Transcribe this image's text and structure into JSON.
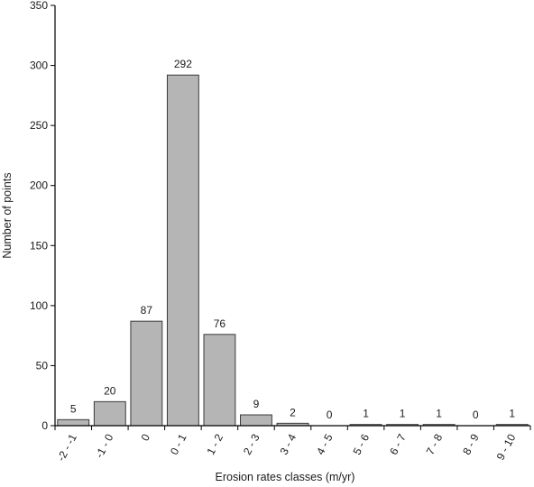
{
  "chart_data": {
    "type": "bar",
    "title": "",
    "xlabel": "Erosion rates classes (m/yr)",
    "ylabel": "Number of points",
    "ylim": [
      0,
      350
    ],
    "yticks": [
      0,
      50,
      100,
      150,
      200,
      250,
      300,
      350
    ],
    "categories": [
      "-2 - -1",
      "-1 - 0",
      "0",
      "0 - 1",
      "1 - 2",
      "2 - 3",
      "3 - 4",
      "4 - 5",
      "5 - 6",
      "6 - 7",
      "7 - 8",
      "8 - 9",
      "9 - 10"
    ],
    "values": [
      5,
      20,
      87,
      292,
      76,
      9,
      2,
      0,
      1,
      1,
      1,
      0,
      1
    ],
    "data_labels": [
      "5",
      "20",
      "87",
      "292",
      "76",
      "9",
      "2",
      "0",
      "1",
      "1",
      "1",
      "0",
      "1"
    ],
    "grid": false,
    "legend": "none",
    "colors": {
      "bar_fill": "#b5b5b5",
      "bar_stroke": "#3a3a3a",
      "axis": "#000000"
    }
  }
}
